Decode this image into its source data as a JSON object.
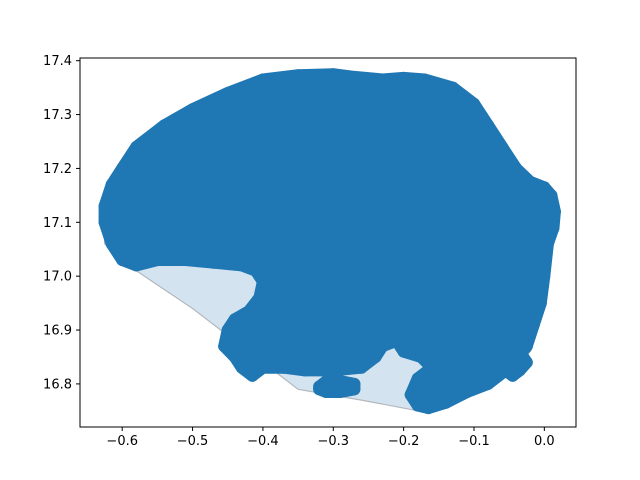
{
  "chart_data": {
    "type": "scatter",
    "title": "",
    "xlabel": "",
    "ylabel": "",
    "xlim": [
      -0.66,
      0.045
    ],
    "ylim": [
      16.72,
      17.405
    ],
    "grid": false,
    "legend": "none",
    "x_ticks": [
      {
        "value": -0.6,
        "label": "−0.6"
      },
      {
        "value": -0.5,
        "label": "−0.5"
      },
      {
        "value": -0.4,
        "label": "−0.4"
      },
      {
        "value": -0.3,
        "label": "−0.3"
      },
      {
        "value": -0.2,
        "label": "−0.2"
      },
      {
        "value": -0.1,
        "label": "−0.1"
      },
      {
        "value": 0.0,
        "label": "0.0"
      }
    ],
    "y_ticks": [
      {
        "value": 16.8,
        "label": "16.8"
      },
      {
        "value": 16.9,
        "label": "16.9"
      },
      {
        "value": 17.0,
        "label": "17.0"
      },
      {
        "value": 17.1,
        "label": "17.1"
      },
      {
        "value": 17.2,
        "label": "17.2"
      },
      {
        "value": 17.3,
        "label": "17.3"
      },
      {
        "value": 17.4,
        "label": "17.4"
      }
    ],
    "series": [
      {
        "kind": "convex-hull",
        "fill": "#d3e3f0",
        "stroke": "#b4b8bd",
        "points": [
          [
            -0.625,
            17.13
          ],
          [
            -0.58,
            17.24
          ],
          [
            -0.5,
            17.31
          ],
          [
            -0.4,
            17.365
          ],
          [
            -0.3,
            17.375
          ],
          [
            -0.2,
            17.365
          ],
          [
            -0.12,
            17.33
          ],
          [
            -0.06,
            17.25
          ],
          [
            -0.02,
            17.18
          ],
          [
            0.01,
            17.16
          ],
          [
            0.015,
            17.1
          ],
          [
            0.0,
            16.95
          ],
          [
            -0.02,
            16.86
          ],
          [
            -0.08,
            16.79
          ],
          [
            -0.18,
            16.75
          ],
          [
            -0.26,
            16.77
          ],
          [
            -0.35,
            16.79
          ],
          [
            -0.42,
            16.86
          ],
          [
            -0.5,
            16.94
          ],
          [
            -0.58,
            17.01
          ],
          [
            -0.625,
            17.06
          ]
        ]
      },
      {
        "kind": "cluster-body",
        "color": "#1f77b4",
        "points": [
          [
            -0.625,
            17.13
          ],
          [
            -0.615,
            17.17
          ],
          [
            -0.6,
            17.2
          ],
          [
            -0.58,
            17.24
          ],
          [
            -0.54,
            17.28
          ],
          [
            -0.5,
            17.31
          ],
          [
            -0.45,
            17.34
          ],
          [
            -0.4,
            17.365
          ],
          [
            -0.35,
            17.373
          ],
          [
            -0.3,
            17.375
          ],
          [
            -0.27,
            17.37
          ],
          [
            -0.23,
            17.365
          ],
          [
            -0.2,
            17.368
          ],
          [
            -0.17,
            17.365
          ],
          [
            -0.13,
            17.35
          ],
          [
            -0.1,
            17.32
          ],
          [
            -0.08,
            17.28
          ],
          [
            -0.06,
            17.24
          ],
          [
            -0.04,
            17.2
          ],
          [
            -0.02,
            17.175
          ],
          [
            0.0,
            17.165
          ],
          [
            0.01,
            17.15
          ],
          [
            0.015,
            17.12
          ],
          [
            0.013,
            17.09
          ],
          [
            0.005,
            17.06
          ],
          [
            0.0,
            17.0
          ],
          [
            -0.005,
            16.95
          ],
          [
            -0.015,
            16.91
          ],
          [
            -0.025,
            16.87
          ],
          [
            -0.05,
            16.83
          ],
          [
            -0.08,
            16.8
          ],
          [
            -0.11,
            16.785
          ],
          [
            -0.14,
            16.765
          ],
          [
            -0.165,
            16.755
          ],
          [
            -0.18,
            16.76
          ],
          [
            -0.19,
            16.78
          ],
          [
            -0.18,
            16.81
          ],
          [
            -0.16,
            16.83
          ],
          [
            -0.175,
            16.85
          ],
          [
            -0.2,
            16.86
          ],
          [
            -0.21,
            16.88
          ],
          [
            -0.23,
            16.87
          ],
          [
            -0.24,
            16.85
          ],
          [
            -0.26,
            16.83
          ],
          [
            -0.3,
            16.825
          ],
          [
            -0.34,
            16.825
          ],
          [
            -0.37,
            16.83
          ],
          [
            -0.4,
            16.83
          ],
          [
            -0.415,
            16.815
          ],
          [
            -0.43,
            16.83
          ],
          [
            -0.44,
            16.85
          ],
          [
            -0.455,
            16.87
          ],
          [
            -0.45,
            16.9
          ],
          [
            -0.44,
            16.92
          ],
          [
            -0.42,
            16.935
          ],
          [
            -0.405,
            16.96
          ],
          [
            -0.4,
            16.99
          ],
          [
            -0.41,
            17.01
          ],
          [
            -0.43,
            17.02
          ],
          [
            -0.47,
            17.025
          ],
          [
            -0.51,
            17.03
          ],
          [
            -0.55,
            17.03
          ],
          [
            -0.58,
            17.02
          ],
          [
            -0.6,
            17.03
          ],
          [
            -0.615,
            17.06
          ],
          [
            -0.625,
            17.1
          ]
        ]
      },
      {
        "kind": "outlier-cluster",
        "color": "#1f77b4",
        "points": [
          [
            -0.32,
            16.795
          ],
          [
            -0.31,
            16.805
          ],
          [
            -0.29,
            16.805
          ],
          [
            -0.27,
            16.8
          ],
          [
            -0.27,
            16.79
          ],
          [
            -0.29,
            16.785
          ],
          [
            -0.31,
            16.785
          ],
          [
            -0.32,
            16.79
          ]
        ]
      },
      {
        "kind": "outlier-cluster",
        "color": "#1f77b4",
        "points": [
          [
            -0.05,
            16.82
          ],
          [
            -0.04,
            16.84
          ],
          [
            -0.03,
            16.85
          ],
          [
            -0.025,
            16.84
          ],
          [
            -0.035,
            16.825
          ],
          [
            -0.045,
            16.815
          ]
        ]
      }
    ]
  }
}
